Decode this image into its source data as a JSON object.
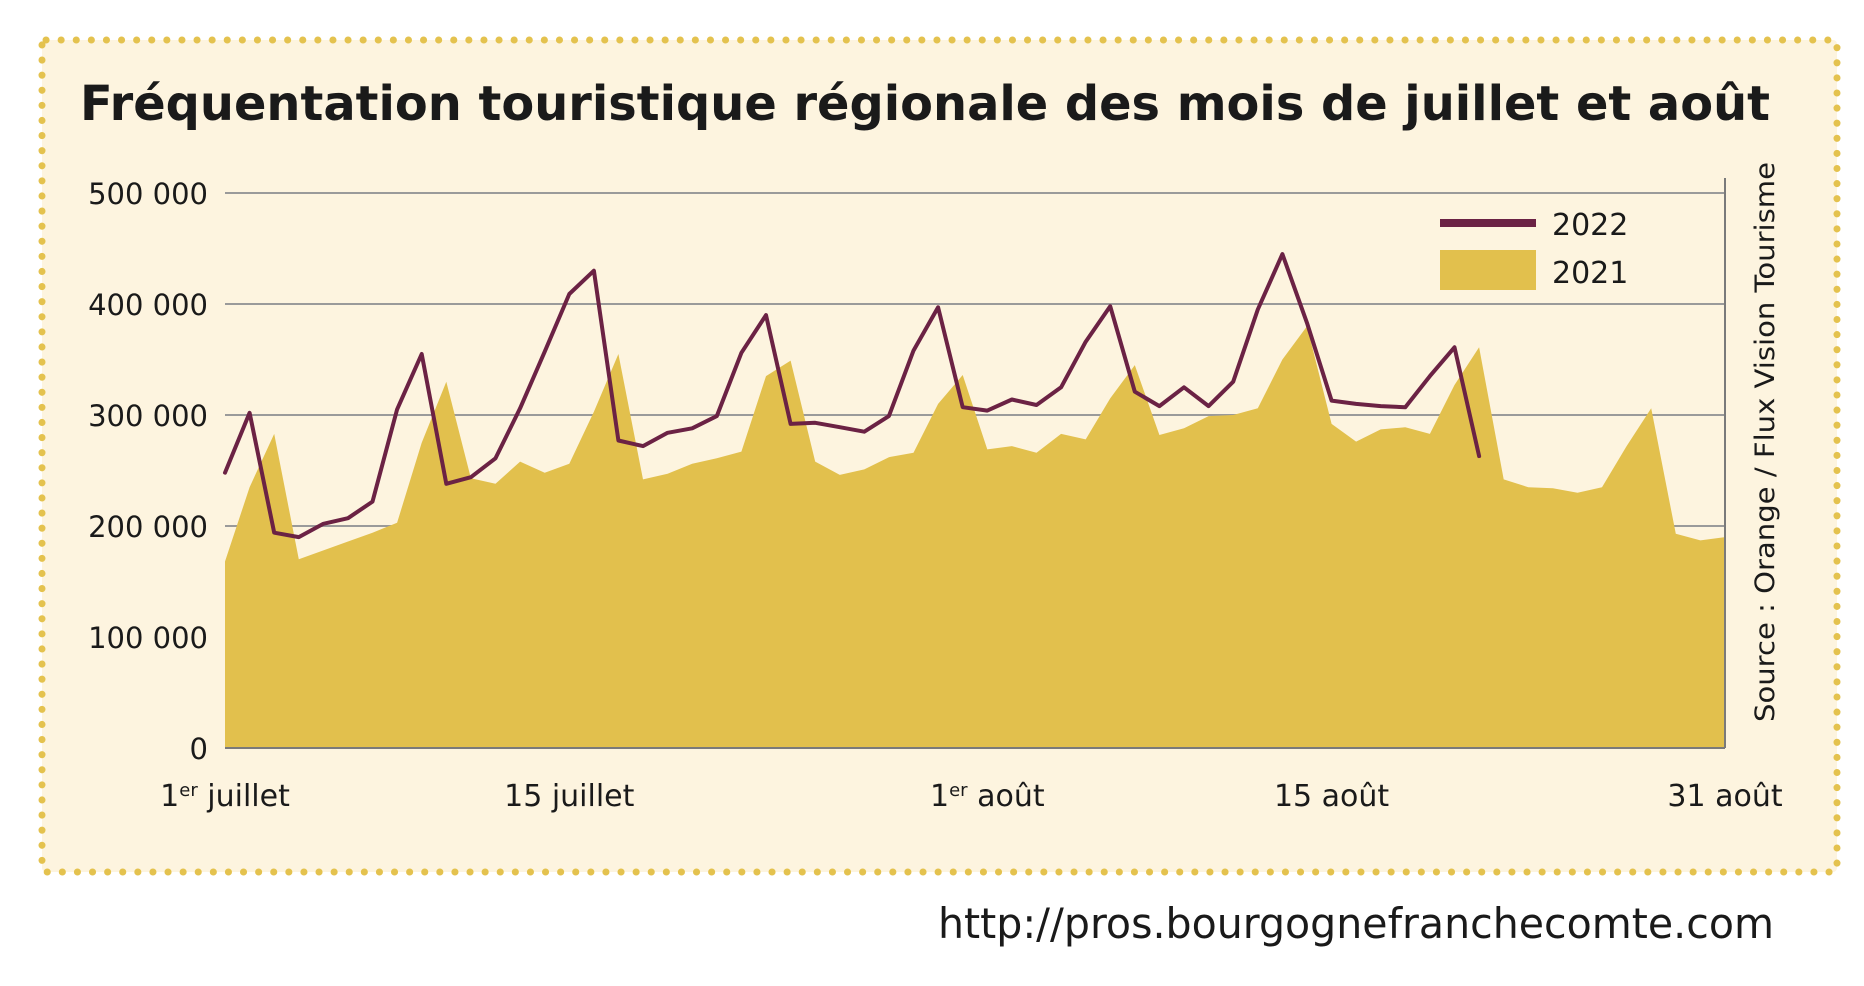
{
  "frame": {
    "background": "#fdf4df",
    "border_color": "#e4c24e",
    "border_style": "dotted"
  },
  "url_text": "http://pros.bourgognefranchecomte.com",
  "chart_data": {
    "type": "area",
    "title": "Fréquentation touristique régionale des mois de juillet et août",
    "source": "Source : Orange / Flux Vision Tourisme",
    "ylim": [
      0,
      500000
    ],
    "y_ticks": [
      {
        "value": 0,
        "label": "0"
      },
      {
        "value": 100000,
        "label": "100 000"
      },
      {
        "value": 200000,
        "label": "200 000"
      },
      {
        "value": 300000,
        "label": "300 000"
      },
      {
        "value": 400000,
        "label": "400 000"
      },
      {
        "value": 500000,
        "label": "500 000"
      }
    ],
    "x_ticks": [
      {
        "day": 1,
        "main": "1",
        "sup": "er",
        "rest": " juillet"
      },
      {
        "day": 15,
        "main": "15 juillet",
        "sup": "",
        "rest": ""
      },
      {
        "day": 32,
        "main": "1",
        "sup": "er",
        "rest": " août"
      },
      {
        "day": 46,
        "main": "15 août",
        "sup": "",
        "rest": ""
      },
      {
        "day": 62,
        "main": "31 août",
        "sup": "",
        "rest": ""
      }
    ],
    "grid": true,
    "legend_position": "top-right",
    "series": [
      {
        "name": "2022",
        "type": "line",
        "color": "#6b2244",
        "start_day": 1,
        "values": [
          248000,
          302000,
          194000,
          190000,
          202000,
          207000,
          222000,
          305000,
          355000,
          238000,
          244000,
          261000,
          306000,
          357000,
          409000,
          430000,
          277000,
          272000,
          284000,
          288000,
          299000,
          356000,
          390000,
          292000,
          293000,
          289000,
          285000,
          299000,
          358000,
          397000,
          307000,
          304000,
          314000,
          309000,
          325000,
          366000,
          398000,
          321000,
          308000,
          325000,
          308000,
          330000,
          395000,
          445000,
          383000,
          313000,
          310000,
          308000,
          307000,
          335000,
          361000,
          263000
        ]
      },
      {
        "name": "2021",
        "type": "area",
        "color": "#e2c04d",
        "start_day": 1,
        "values": [
          168000,
          235000,
          283000,
          170000,
          178000,
          186000,
          194000,
          203000,
          275000,
          330000,
          243000,
          238000,
          258000,
          248000,
          256000,
          303000,
          355000,
          242000,
          247000,
          256000,
          261000,
          267000,
          335000,
          349000,
          258000,
          246000,
          251000,
          262000,
          266000,
          310000,
          336000,
          269000,
          272000,
          266000,
          283000,
          278000,
          315000,
          345000,
          282000,
          288000,
          299000,
          300000,
          306000,
          350000,
          380000,
          292000,
          276000,
          287000,
          289000,
          283000,
          327000,
          361000,
          242000,
          235000,
          234000,
          230000,
          235000,
          272000,
          306000,
          193000,
          187000,
          190000
        ]
      }
    ]
  }
}
